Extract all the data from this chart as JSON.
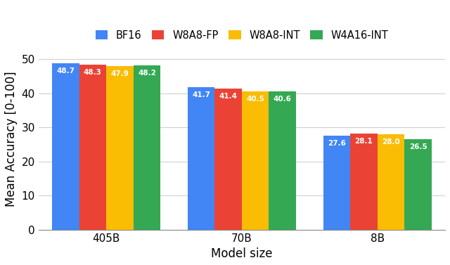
{
  "categories": [
    "405B",
    "70B",
    "8B"
  ],
  "series": [
    {
      "label": "BF16",
      "color": "#4285F4",
      "values": [
        48.7,
        41.7,
        27.6
      ]
    },
    {
      "label": "W8A8-FP",
      "color": "#EA4335",
      "values": [
        48.3,
        41.4,
        28.1
      ]
    },
    {
      "label": "W8A8-INT",
      "color": "#FBBC04",
      "values": [
        47.9,
        40.5,
        28.0
      ]
    },
    {
      "label": "W4A16-INT",
      "color": "#34A853",
      "values": [
        48.2,
        40.6,
        26.5
      ]
    }
  ],
  "ylabel": "Mean Accuracy [0-100]",
  "xlabel": "Model size",
  "ylim": [
    0,
    53
  ],
  "yticks": [
    0,
    10,
    20,
    30,
    40,
    50
  ],
  "bar_width": 0.2,
  "group_centers": [
    0,
    1,
    2
  ],
  "label_fontsize": 7.5,
  "axis_label_fontsize": 12,
  "tick_fontsize": 11,
  "legend_fontsize": 10.5,
  "background_color": "#ffffff",
  "grid_color": "#d0d0d0",
  "figsize": [
    6.4,
    3.77
  ],
  "dpi": 100
}
